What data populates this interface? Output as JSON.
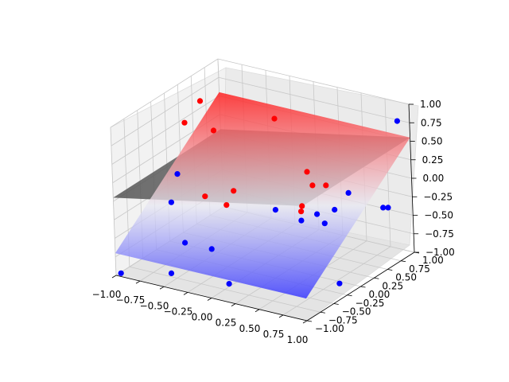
{
  "chart_data": {
    "type": "scatter",
    "projection": "3d",
    "title": "",
    "xlabel": "",
    "ylabel": "",
    "zlabel": "",
    "xlim": [
      -1.0,
      1.0
    ],
    "ylim": [
      -1.0,
      1.0
    ],
    "zlim": [
      -1.0,
      1.0
    ],
    "grid": true,
    "x_ticks": [
      "−1.00",
      "−0.75",
      "−0.50",
      "−0.25",
      "0.00",
      "0.25",
      "0.50",
      "0.75",
      "1.00"
    ],
    "y_ticks": [
      "−1.00",
      "−0.75",
      "−0.50",
      "−0.25",
      "0.00",
      "0.25",
      "0.50",
      "0.75",
      "1.00"
    ],
    "z_ticks": [
      "−1.00",
      "−0.75",
      "−0.50",
      "−0.25",
      "0.00",
      "0.25",
      "0.50",
      "0.75",
      "1.00"
    ],
    "colors": {
      "red_class": "#ff0000",
      "blue_class": "#0000ff",
      "gray_plane": "#555555"
    },
    "surfaces": [
      {
        "name": "gray-plane",
        "z_corners": [
          0.05,
          0.55,
          0.55,
          0.05
        ],
        "colormap": "gray"
      },
      {
        "name": "bwr-plane",
        "z_corners": [
          -0.7,
          -0.7,
          0.55,
          0.55
        ],
        "colormap": "bwr"
      }
    ],
    "series": [
      {
        "class": "red",
        "color": "#ff0000",
        "points": [
          [
            -0.95,
            0.56,
            0.65
          ],
          [
            -0.72,
            0.39,
            0.4
          ],
          [
            -0.6,
            -0.34,
            0.88
          ],
          [
            -0.48,
            0.3,
            -0.3
          ],
          [
            -0.7,
            0.54,
            -0.67
          ],
          [
            -0.65,
            0.07,
            -0.32
          ],
          [
            -0.09,
            0.42,
            0.74
          ],
          [
            0.17,
            0.53,
            0.05
          ],
          [
            0.26,
            0.26,
            -0.26
          ],
          [
            0.44,
            0.4,
            0.01
          ],
          [
            0.31,
            0.38,
            -0.02
          ],
          [
            0.4,
            0.0,
            -0.17
          ]
        ]
      },
      {
        "class": "blue",
        "color": "#0000ff",
        "points": [
          [
            -0.97,
            -0.96,
            -0.98
          ],
          [
            -0.63,
            -0.63,
            -1.03
          ],
          [
            0.0,
            -0.67,
            -0.96
          ],
          [
            0.83,
            -0.09,
            -0.97
          ],
          [
            0.94,
            0.88,
            0.81
          ],
          [
            -0.44,
            -0.78,
            0.44
          ],
          [
            -0.8,
            -0.29,
            -0.28
          ],
          [
            -0.45,
            -0.19,
            -0.85
          ],
          [
            -0.52,
            -0.55,
            -0.62
          ],
          [
            0.58,
            0.3,
            -0.23
          ],
          [
            0.53,
            0.65,
            -0.18
          ],
          [
            0.78,
            0.84,
            -0.39
          ],
          [
            0.13,
            0.0,
            -0.23
          ],
          [
            0.12,
            0.48,
            -0.6
          ],
          [
            0.36,
            0.49,
            -0.57
          ],
          [
            0.3,
            0.46,
            -0.45
          ],
          [
            0.81,
            0.88,
            -0.4
          ]
        ]
      }
    ]
  }
}
